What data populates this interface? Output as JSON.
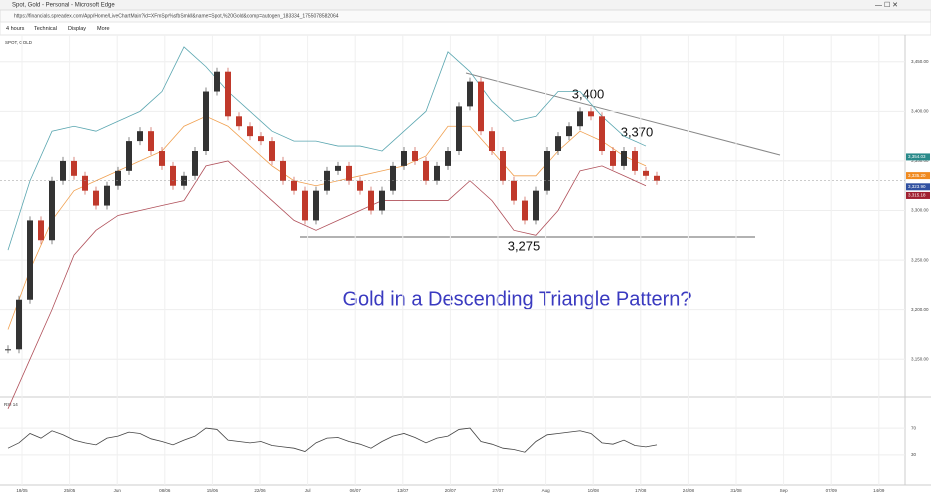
{
  "window_title": "Spot, Gold - Personal - Microsoft Edge",
  "url": "https://financials.spreadex.com/App/Home/LiveChartMain?id=XFmSpr%sfbSmkll&name=Spot,%20Gold&comp=autogen_183334_1755078582064",
  "toolbar": [
    "4 hours",
    "Technical",
    "Display",
    "More"
  ],
  "chart_data": {
    "type": "candlestick",
    "title": "SPOT, GOLD",
    "closes": [
      3160,
      3210,
      3290,
      3270,
      3330,
      3350,
      3335,
      3320,
      3305,
      3325,
      3340,
      3370,
      3380,
      3360,
      3345,
      3325,
      3335,
      3360,
      3420,
      3440,
      3395,
      3385,
      3375,
      3370,
      3350,
      3330,
      3320,
      3290,
      3320,
      3340,
      3345,
      3330,
      3320,
      3300,
      3320,
      3345,
      3360,
      3350,
      3330,
      3345,
      3360,
      3405,
      3430,
      3380,
      3360,
      3330,
      3310,
      3290,
      3320,
      3360,
      3375,
      3385,
      3400,
      3395,
      3360,
      3345,
      3360,
      3340,
      3335,
      3330
    ],
    "up_color": "#333333",
    "down_color": "#c0392b",
    "upper_band": [
      3260,
      3330,
      3380,
      3385,
      3380,
      3390,
      3400,
      3420,
      3465,
      3445,
      3420,
      3400,
      3380,
      3370,
      3370,
      3365,
      3365,
      3360,
      3380,
      3400,
      3460,
      3440,
      3410,
      3390,
      3395,
      3420,
      3420,
      3395,
      3375,
      3365
    ],
    "middle_band": [
      3180,
      3240,
      3290,
      3320,
      3330,
      3340,
      3350,
      3360,
      3385,
      3395,
      3385,
      3365,
      3345,
      3330,
      3325,
      3330,
      3335,
      3340,
      3345,
      3355,
      3385,
      3385,
      3360,
      3335,
      3335,
      3360,
      3380,
      3370,
      3355,
      3345
    ],
    "lower_band": [
      3100,
      3150,
      3200,
      3255,
      3280,
      3295,
      3300,
      3305,
      3310,
      3345,
      3350,
      3330,
      3310,
      3290,
      3280,
      3290,
      3300,
      3310,
      3310,
      3310,
      3310,
      3330,
      3310,
      3280,
      3275,
      3300,
      3340,
      3345,
      3335,
      3325
    ],
    "band_colors": [
      "#5aa6b0",
      "#f0a050",
      "#b0505a"
    ],
    "ylim": [
      3124,
      3476
    ],
    "yticks": [
      {
        "value": 3450,
        "label": "3,450.00"
      },
      {
        "value": 3400,
        "label": "3,400.00"
      },
      {
        "value": 3350,
        "label": "3,350.00"
      },
      {
        "value": 3300,
        "label": "3,300.00"
      },
      {
        "value": 3250,
        "label": "3,250.00"
      },
      {
        "value": 3200,
        "label": "3,200.00"
      },
      {
        "value": 3150,
        "label": "3,150.00"
      }
    ],
    "price_tags": [
      {
        "value": 3354.03,
        "label": "3,354.03",
        "color": "#2a8a8a"
      },
      {
        "value": 3335.2,
        "label": "3,335.20",
        "color": "#f08a20"
      },
      {
        "value": 3323.9,
        "label": "3,323.90",
        "color": "#3050a0"
      },
      {
        "value": 3315.18,
        "label": "3,315.18",
        "color": "#a02030"
      }
    ],
    "dates": [
      "18/05",
      "25/05",
      "Jun",
      "08/06",
      "15/06",
      "22/06",
      "Jul",
      "06/07",
      "13/07",
      "20/07",
      "27/07",
      "Aug",
      "10/08",
      "17/08",
      "24/08",
      "31/08",
      "Sep",
      "07/09",
      "14/09"
    ],
    "annotations": [
      "3,400",
      "3,370",
      "3,275",
      "Gold in a Descending Triangle Pattern?"
    ],
    "rsi": {
      "name": "RSI 14",
      "ylim": [
        0,
        100
      ],
      "yticks": [
        70,
        30
      ],
      "color": "#444444",
      "values": [
        40,
        48,
        62,
        55,
        66,
        60,
        52,
        48,
        45,
        55,
        58,
        64,
        62,
        54,
        50,
        45,
        52,
        58,
        70,
        68,
        52,
        50,
        48,
        50,
        44,
        42,
        40,
        35,
        48,
        55,
        56,
        50,
        46,
        40,
        50,
        58,
        62,
        56,
        48,
        55,
        58,
        68,
        70,
        50,
        46,
        40,
        38,
        34,
        50,
        60,
        62,
        64,
        66,
        62,
        48,
        46,
        52,
        44,
        42,
        45
      ]
    }
  }
}
